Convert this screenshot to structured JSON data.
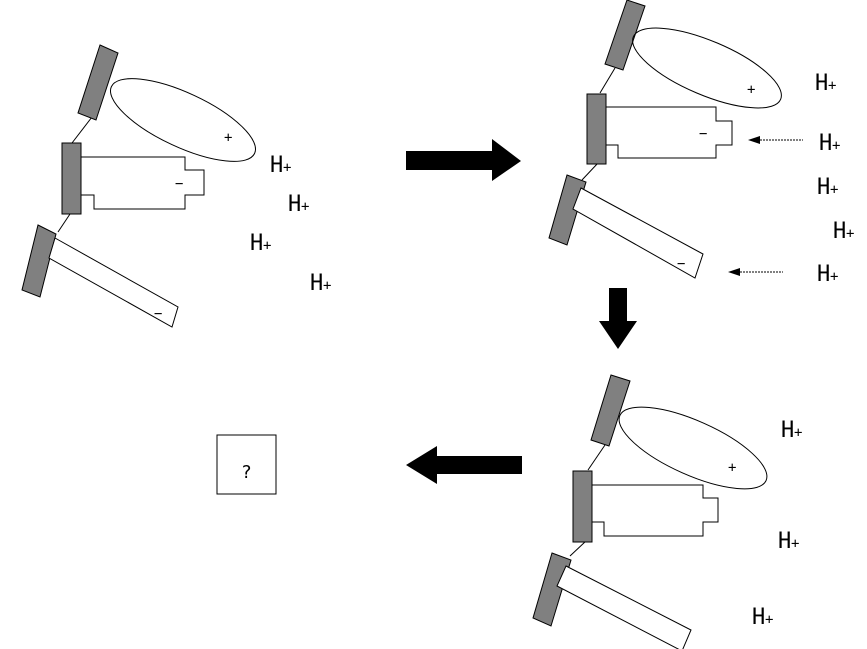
{
  "charges": {
    "plus": "+",
    "minus": "−"
  },
  "ion": {
    "letter": "H",
    "charge": "+"
  },
  "unknown_box": {
    "text": "?"
  }
}
